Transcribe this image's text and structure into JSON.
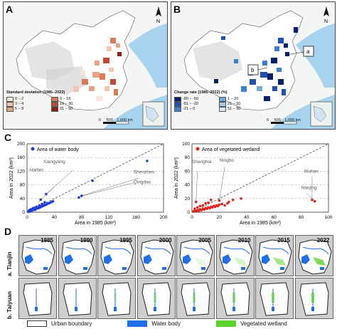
{
  "panel_labels": {
    "a": "A",
    "b": "B",
    "c": "C",
    "d": "D"
  },
  "map_a": {
    "legend_title": "Standard deviation (1985–2022)",
    "legend_items": [
      {
        "label": "0 – 2",
        "color": "#f8e6dc"
      },
      {
        "label": "9 – 18",
        "color": "#d97a5a"
      },
      {
        "label": "3 – 4",
        "color": "#f2c4ad"
      },
      {
        "label": "19 – 30",
        "color": "#c24a34"
      },
      {
        "label": "5 – 8",
        "color": "#e8a285"
      },
      {
        "label": "31 – 50",
        "color": "#8c1c16"
      }
    ],
    "scale": {
      "zero": "0",
      "mid": "500",
      "end": "1,000",
      "unit": "km"
    },
    "north": "N"
  },
  "map_b": {
    "legend_title": "Change rate (1985–2022) (%)",
    "legend_items": [
      {
        "label": "-80 – -50",
        "color": "#08216b"
      },
      {
        "label": "1 – 20",
        "color": "#6fa8dc"
      },
      {
        "label": "-51 – -20",
        "color": "#1f4fb4"
      },
      {
        "label": "21 – 50",
        "color": "#a9cbea"
      },
      {
        "label": "-21 – 0",
        "color": "#3d7fd1"
      },
      {
        "label": "51 – 90",
        "color": "#d9e9f7"
      }
    ],
    "scale": {
      "zero": "0",
      "mid": "500",
      "end": "1,000",
      "unit": "km"
    },
    "north": "N",
    "callouts": [
      "a",
      "b"
    ]
  },
  "chart_data": [
    {
      "type": "scatter",
      "title": "",
      "legend": "Area of water body",
      "legend_position": "top-left",
      "xlabel": "Area in 1985 (km²)",
      "ylabel": "Area in 2022 (km²)",
      "xlim": [
        0,
        200
      ],
      "ylim": [
        0,
        200
      ],
      "xticks": [
        0,
        40,
        80,
        120,
        160,
        200
      ],
      "yticks": [
        0,
        40,
        80,
        120,
        160,
        200
      ],
      "color": "#1f3fd6",
      "reference_line": "1:1",
      "points": [
        [
          2,
          1
        ],
        [
          3,
          2
        ],
        [
          4,
          3
        ],
        [
          5,
          4
        ],
        [
          6,
          3
        ],
        [
          7,
          5
        ],
        [
          8,
          6
        ],
        [
          9,
          7
        ],
        [
          10,
          8
        ],
        [
          11,
          9
        ],
        [
          12,
          7
        ],
        [
          13,
          10
        ],
        [
          14,
          11
        ],
        [
          15,
          12
        ],
        [
          16,
          13
        ],
        [
          17,
          12
        ],
        [
          18,
          15
        ],
        [
          19,
          14
        ],
        [
          20,
          16
        ],
        [
          22,
          17
        ],
        [
          24,
          19
        ],
        [
          25,
          20
        ],
        [
          26,
          21
        ],
        [
          28,
          22
        ],
        [
          30,
          25
        ],
        [
          32,
          26
        ],
        [
          34,
          28
        ],
        [
          36,
          30
        ],
        [
          38,
          32
        ],
        [
          3,
          5
        ],
        [
          5,
          8
        ],
        [
          7,
          9
        ],
        [
          9,
          12
        ],
        [
          11,
          13
        ],
        [
          14,
          16
        ],
        [
          18,
          20
        ],
        [
          22,
          24
        ],
        [
          26,
          29
        ],
        [
          20,
          37
        ],
        [
          28,
          53
        ],
        [
          76,
          43
        ],
        [
          80,
          48
        ],
        [
          96,
          92
        ],
        [
          176,
          150
        ]
      ],
      "annotations": [
        "Harbin",
        "Xiangyang",
        "Shenzhen",
        "Qingdao"
      ]
    },
    {
      "type": "scatter",
      "title": "",
      "legend": "Area of vegetated wetland",
      "legend_position": "top-left",
      "xlabel": "Area in 1985 (km²)",
      "ylabel": "Area in 2022 (km²)",
      "xlim": [
        0,
        100
      ],
      "ylim": [
        0,
        100
      ],
      "xticks": [
        0,
        20,
        40,
        60,
        80,
        100
      ],
      "yticks": [
        0,
        20,
        40,
        60,
        80,
        100
      ],
      "color": "#e3241b",
      "reference_line": "1:1",
      "points": [
        [
          1,
          1
        ],
        [
          2,
          2
        ],
        [
          3,
          1
        ],
        [
          4,
          3
        ],
        [
          5,
          2
        ],
        [
          6,
          4
        ],
        [
          7,
          3
        ],
        [
          8,
          5
        ],
        [
          9,
          4
        ],
        [
          10,
          6
        ],
        [
          11,
          5
        ],
        [
          12,
          7
        ],
        [
          13,
          6
        ],
        [
          14,
          8
        ],
        [
          15,
          7
        ],
        [
          16,
          9
        ],
        [
          17,
          8
        ],
        [
          18,
          10
        ],
        [
          19,
          9
        ],
        [
          20,
          11
        ],
        [
          22,
          12
        ],
        [
          24,
          10
        ],
        [
          26,
          13
        ],
        [
          2,
          5
        ],
        [
          4,
          7
        ],
        [
          6,
          9
        ],
        [
          8,
          10
        ],
        [
          10,
          13
        ],
        [
          12,
          14
        ],
        [
          3,
          15
        ],
        [
          14,
          18
        ],
        [
          20,
          17
        ],
        [
          27,
          15
        ],
        [
          30,
          18
        ],
        [
          36,
          20
        ],
        [
          88,
          18
        ],
        [
          90,
          16
        ]
      ],
      "annotations": [
        "Shanghai",
        "Ningbo",
        "Wuhan",
        "Nanjing"
      ]
    }
  ],
  "panel_d": {
    "years": [
      "1985",
      "1990",
      "1995",
      "2000",
      "2005",
      "2010",
      "2015",
      "2022"
    ],
    "rows": [
      {
        "label": "a. Tianjin",
        "green": [
          0,
          0,
          0,
          0,
          0.15,
          0.25,
          0.55,
          0.8
        ]
      },
      {
        "label": "b. Taiyuan",
        "green": [
          0,
          0,
          0.2,
          0.4,
          0.5,
          0.6,
          0.7,
          0.8
        ]
      }
    ],
    "legend": [
      {
        "label": "Urban boundary",
        "color": "#ffffff"
      },
      {
        "label": "Water body",
        "color": "#1e6fe8"
      },
      {
        "label": "Vegetated wetland",
        "color": "#5bd22a"
      }
    ]
  }
}
